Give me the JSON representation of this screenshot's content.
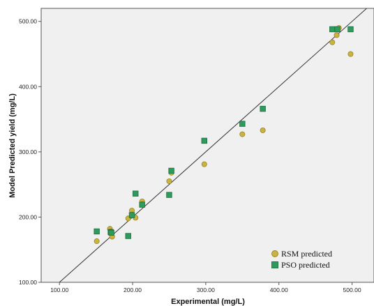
{
  "chart_data": {
    "type": "scatter",
    "xlabel": "Experimental (mg/L)",
    "ylabel": "Model Predicted yield (mg/L)",
    "xlim": [
      75,
      530
    ],
    "ylim": [
      100,
      520
    ],
    "x_ticks": [
      100,
      200,
      300,
      400,
      500
    ],
    "y_ticks": [
      100,
      200,
      300,
      400,
      500
    ],
    "x_tick_labels": [
      "100.00",
      "200.00",
      "300.00",
      "400.00",
      "500.00"
    ],
    "y_tick_labels": [
      "100.00",
      "200.00",
      "300.00",
      "400.00",
      "500.00"
    ],
    "grid": false,
    "background_color": "#f0f0f0",
    "reference_line": {
      "type": "y=x",
      "color": "#333333"
    },
    "legend_position": "bottom-right",
    "series": [
      {
        "name": "RSM predicted",
        "marker": "circle",
        "color": "#c9b341",
        "stroke": "#9a8420",
        "points": [
          [
            151,
            163
          ],
          [
            169,
            182
          ],
          [
            170,
            178
          ],
          [
            172,
            170
          ],
          [
            194,
            198
          ],
          [
            199,
            210
          ],
          [
            199,
            204
          ],
          [
            204,
            199
          ],
          [
            213,
            224
          ],
          [
            213,
            220
          ],
          [
            250,
            255
          ],
          [
            253,
            268
          ],
          [
            298,
            281
          ],
          [
            350,
            327
          ],
          [
            378,
            333
          ],
          [
            473,
            468
          ],
          [
            479,
            479
          ],
          [
            480,
            488
          ],
          [
            482,
            490
          ],
          [
            498,
            450
          ]
        ]
      },
      {
        "name": "PSO predicted",
        "marker": "square",
        "color": "#2e9a5b",
        "stroke": "#1c6e3e",
        "points": [
          [
            151,
            178
          ],
          [
            170,
            177
          ],
          [
            171,
            176
          ],
          [
            194,
            171
          ],
          [
            199,
            203
          ],
          [
            204,
            236
          ],
          [
            213,
            219
          ],
          [
            250,
            234
          ],
          [
            253,
            271
          ],
          [
            298,
            317
          ],
          [
            350,
            343
          ],
          [
            378,
            366
          ],
          [
            473,
            488
          ],
          [
            480,
            488
          ],
          [
            498,
            488
          ]
        ]
      }
    ]
  }
}
